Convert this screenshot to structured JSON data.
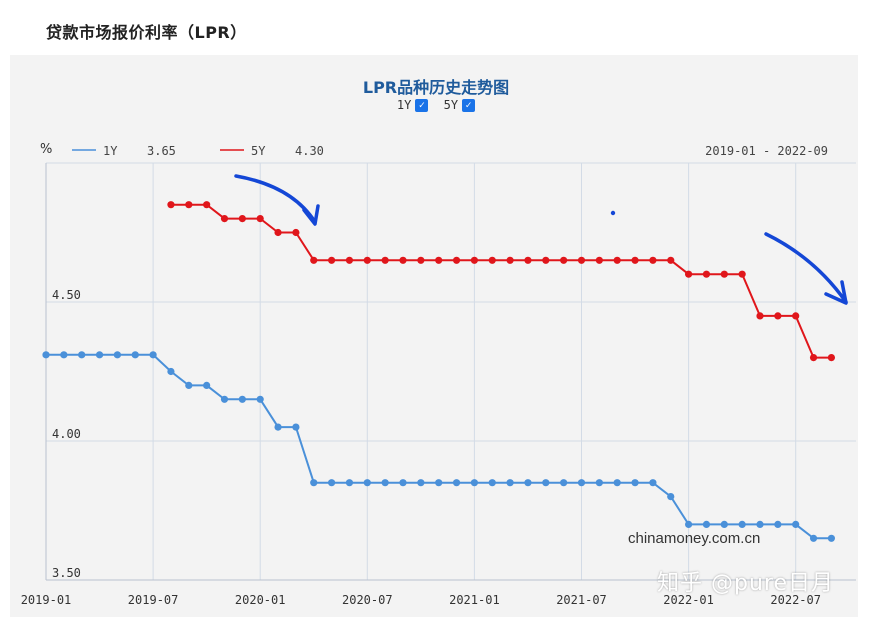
{
  "page": {
    "title": "贷款市场报价利率（LPR）"
  },
  "chart_header": {
    "title": "LPR品种历史走势图",
    "toggle_1y": "1Y",
    "toggle_5y": "5Y"
  },
  "legend": {
    "unit": "%",
    "items": [
      {
        "name": "1Y",
        "value": "3.65",
        "color": "#4a90d9"
      },
      {
        "name": "5Y",
        "value": "4.30",
        "color": "#e0161b"
      }
    ],
    "range": "2019-01 - 2022-09"
  },
  "watermarks": {
    "site": "chinamoney.com.cn",
    "zhihu": "知乎 @pure日月"
  },
  "annotation": {
    "color": "#1447d6"
  },
  "chart_data": {
    "type": "line",
    "x": [
      "2019-01",
      "2019-02",
      "2019-03",
      "2019-04",
      "2019-05",
      "2019-06",
      "2019-07",
      "2019-08",
      "2019-09",
      "2019-10",
      "2019-11",
      "2019-12",
      "2020-01",
      "2020-02",
      "2020-03",
      "2020-04",
      "2020-05",
      "2020-06",
      "2020-07",
      "2020-08",
      "2020-09",
      "2020-10",
      "2020-11",
      "2020-12",
      "2021-01",
      "2021-02",
      "2021-03",
      "2021-04",
      "2021-05",
      "2021-06",
      "2021-07",
      "2021-08",
      "2021-09",
      "2021-10",
      "2021-11",
      "2021-12",
      "2022-01",
      "2022-02",
      "2022-03",
      "2022-04",
      "2022-05",
      "2022-06",
      "2022-07",
      "2022-08",
      "2022-09"
    ],
    "x_tick_labels": [
      "2019-01",
      "2019-07",
      "2020-01",
      "2020-07",
      "2021-01",
      "2021-07",
      "2022-01",
      "2022-07"
    ],
    "y_tick_labels": [
      "3.50",
      "4.00",
      "4.50"
    ],
    "ylim": [
      3.5,
      5.0
    ],
    "grid": true,
    "series": [
      {
        "name": "1Y",
        "color": "#4a90d9",
        "values": [
          4.31,
          4.31,
          4.31,
          4.31,
          4.31,
          4.31,
          4.31,
          4.25,
          4.2,
          4.2,
          4.15,
          4.15,
          4.15,
          4.05,
          4.05,
          3.85,
          3.85,
          3.85,
          3.85,
          3.85,
          3.85,
          3.85,
          3.85,
          3.85,
          3.85,
          3.85,
          3.85,
          3.85,
          3.85,
          3.85,
          3.85,
          3.85,
          3.85,
          3.85,
          3.85,
          3.8,
          3.7,
          3.7,
          3.7,
          3.7,
          3.7,
          3.7,
          3.7,
          3.65,
          3.65
        ]
      },
      {
        "name": "5Y",
        "color": "#e0161b",
        "values": [
          null,
          null,
          null,
          null,
          null,
          null,
          null,
          4.85,
          4.85,
          4.85,
          4.8,
          4.8,
          4.8,
          4.75,
          4.75,
          4.65,
          4.65,
          4.65,
          4.65,
          4.65,
          4.65,
          4.65,
          4.65,
          4.65,
          4.65,
          4.65,
          4.65,
          4.65,
          4.65,
          4.65,
          4.65,
          4.65,
          4.65,
          4.65,
          4.65,
          4.65,
          4.6,
          4.6,
          4.6,
          4.6,
          4.45,
          4.45,
          4.45,
          4.3,
          4.3
        ]
      }
    ]
  }
}
